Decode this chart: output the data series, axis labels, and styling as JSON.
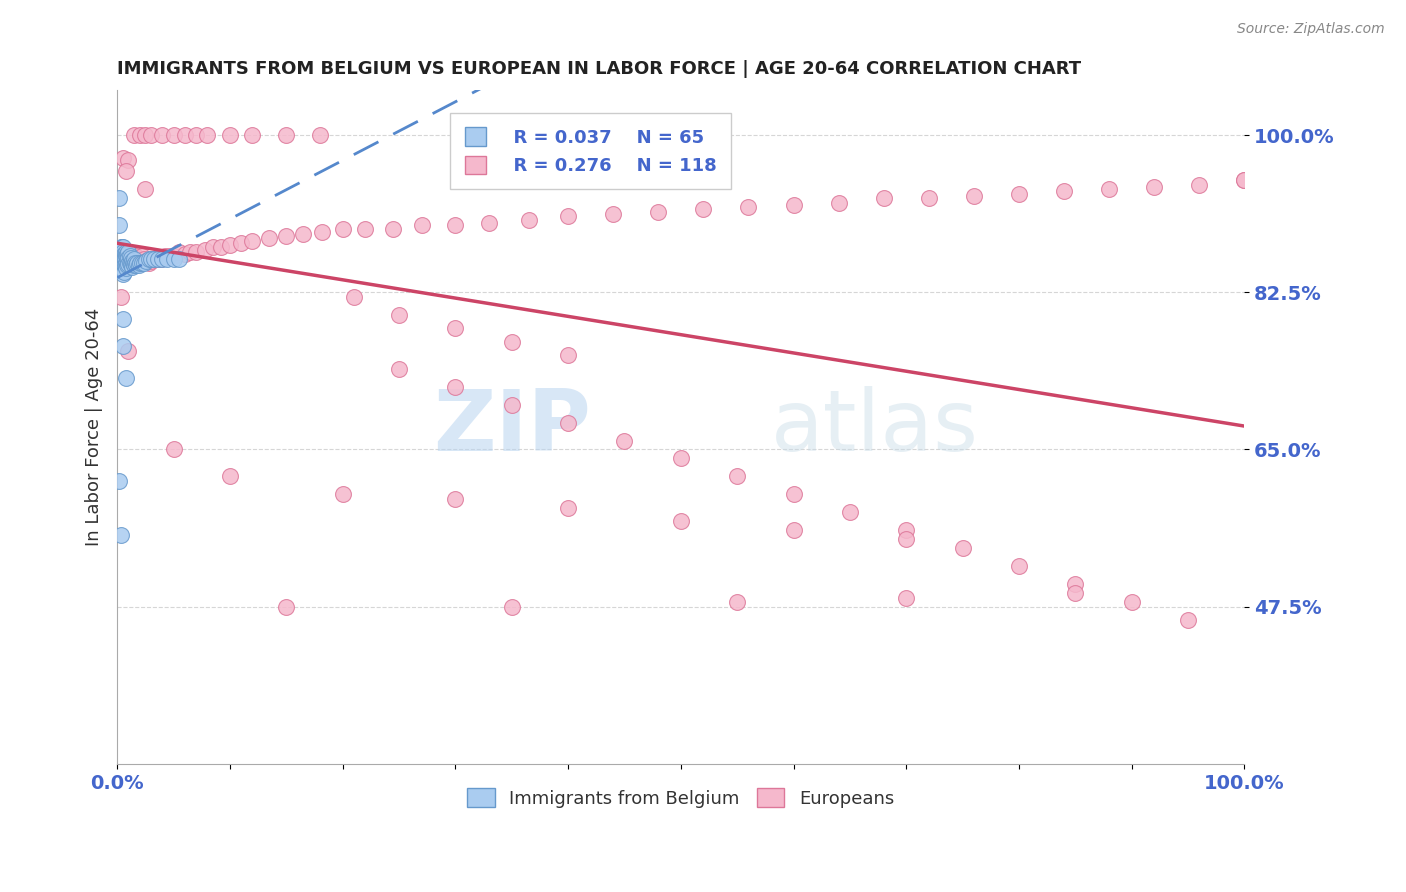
{
  "title": "IMMIGRANTS FROM BELGIUM VS EUROPEAN IN LABOR FORCE | AGE 20-64 CORRELATION CHART",
  "source": "Source: ZipAtlas.com",
  "ylabel": "In Labor Force | Age 20-64",
  "xlim": [
    0.0,
    1.0
  ],
  "ylim": [
    0.3,
    1.05
  ],
  "x_ticks": [
    0.0,
    0.1,
    0.2,
    0.3,
    0.4,
    0.5,
    0.6,
    0.7,
    0.8,
    0.9,
    1.0
  ],
  "x_tick_labels": [
    "0.0%",
    "",
    "",
    "",
    "",
    "",
    "",
    "",
    "",
    "",
    "100.0%"
  ],
  "y_tick_vals": [
    0.475,
    0.65,
    0.825,
    1.0
  ],
  "y_tick_labels": [
    "47.5%",
    "65.0%",
    "82.5%",
    "100.0%"
  ],
  "belgium_color": "#aaccf0",
  "belgium_edge_color": "#6699cc",
  "european_color": "#f5b8cc",
  "european_edge_color": "#dd7799",
  "trendline_belgium_color": "#5588cc",
  "trendline_european_color": "#cc4466",
  "legend_R_belgium": "R = 0.037",
  "legend_N_belgium": "N = 65",
  "legend_R_european": "R = 0.276",
  "legend_N_european": "N = 118",
  "watermark_zip": "ZIP",
  "watermark_atlas": "atlas",
  "grid_color": "#cccccc",
  "title_color": "#222222",
  "axis_label_color": "#333333",
  "tick_label_color": "#4466cc",
  "background_color": "#ffffff",
  "belgium_x": [
    0.002,
    0.002,
    0.003,
    0.003,
    0.003,
    0.003,
    0.003,
    0.004,
    0.004,
    0.004,
    0.004,
    0.004,
    0.005,
    0.005,
    0.005,
    0.005,
    0.005,
    0.005,
    0.006,
    0.006,
    0.006,
    0.006,
    0.007,
    0.007,
    0.007,
    0.008,
    0.008,
    0.008,
    0.008,
    0.009,
    0.009,
    0.009,
    0.01,
    0.01,
    0.01,
    0.011,
    0.011,
    0.012,
    0.012,
    0.013,
    0.013,
    0.014,
    0.015,
    0.015,
    0.016,
    0.017,
    0.018,
    0.019,
    0.02,
    0.022,
    0.024,
    0.026,
    0.028,
    0.03,
    0.033,
    0.036,
    0.04,
    0.044,
    0.05,
    0.055,
    0.002,
    0.003,
    0.005,
    0.005,
    0.008
  ],
  "belgium_y": [
    0.93,
    0.9,
    0.875,
    0.87,
    0.865,
    0.86,
    0.855,
    0.875,
    0.87,
    0.865,
    0.86,
    0.855,
    0.875,
    0.87,
    0.862,
    0.856,
    0.85,
    0.845,
    0.868,
    0.862,
    0.855,
    0.848,
    0.868,
    0.862,
    0.855,
    0.87,
    0.865,
    0.858,
    0.852,
    0.868,
    0.862,
    0.855,
    0.87,
    0.863,
    0.856,
    0.865,
    0.858,
    0.863,
    0.856,
    0.86,
    0.853,
    0.858,
    0.862,
    0.855,
    0.858,
    0.855,
    0.858,
    0.855,
    0.858,
    0.858,
    0.858,
    0.86,
    0.862,
    0.862,
    0.862,
    0.862,
    0.862,
    0.862,
    0.862,
    0.862,
    0.615,
    0.555,
    0.795,
    0.765,
    0.73
  ],
  "european_x": [
    0.002,
    0.003,
    0.004,
    0.005,
    0.006,
    0.007,
    0.008,
    0.009,
    0.01,
    0.011,
    0.012,
    0.013,
    0.015,
    0.016,
    0.017,
    0.018,
    0.02,
    0.022,
    0.024,
    0.026,
    0.028,
    0.03,
    0.033,
    0.036,
    0.039,
    0.042,
    0.046,
    0.05,
    0.055,
    0.06,
    0.065,
    0.07,
    0.078,
    0.085,
    0.092,
    0.1,
    0.11,
    0.12,
    0.135,
    0.15,
    0.165,
    0.182,
    0.2,
    0.22,
    0.245,
    0.27,
    0.3,
    0.33,
    0.365,
    0.4,
    0.44,
    0.48,
    0.52,
    0.56,
    0.6,
    0.64,
    0.68,
    0.72,
    0.76,
    0.8,
    0.84,
    0.88,
    0.92,
    0.96,
    1.0,
    0.005,
    0.01,
    0.015,
    0.02,
    0.025,
    0.03,
    0.04,
    0.05,
    0.06,
    0.07,
    0.08,
    0.1,
    0.12,
    0.15,
    0.18,
    0.21,
    0.25,
    0.3,
    0.35,
    0.4,
    0.25,
    0.3,
    0.35,
    0.4,
    0.45,
    0.5,
    0.55,
    0.6,
    0.65,
    0.7,
    0.75,
    0.8,
    0.85,
    0.9,
    0.95,
    0.003,
    0.01,
    0.05,
    0.1,
    0.2,
    0.3,
    0.4,
    0.5,
    0.6,
    0.7,
    0.15,
    0.35,
    0.55,
    0.7,
    0.85,
    1.0,
    0.008,
    0.025
  ],
  "european_y": [
    0.87,
    0.868,
    0.865,
    0.862,
    0.86,
    0.858,
    0.87,
    0.868,
    0.865,
    0.86,
    0.858,
    0.862,
    0.868,
    0.865,
    0.862,
    0.858,
    0.862,
    0.865,
    0.862,
    0.86,
    0.858,
    0.86,
    0.862,
    0.862,
    0.862,
    0.865,
    0.865,
    0.865,
    0.87,
    0.868,
    0.87,
    0.87,
    0.872,
    0.875,
    0.875,
    0.878,
    0.88,
    0.882,
    0.885,
    0.888,
    0.89,
    0.892,
    0.895,
    0.895,
    0.895,
    0.9,
    0.9,
    0.902,
    0.905,
    0.91,
    0.912,
    0.915,
    0.918,
    0.92,
    0.922,
    0.925,
    0.93,
    0.93,
    0.932,
    0.935,
    0.938,
    0.94,
    0.942,
    0.945,
    0.95,
    0.975,
    0.972,
    1.0,
    1.0,
    1.0,
    1.0,
    1.0,
    1.0,
    1.0,
    1.0,
    1.0,
    1.0,
    1.0,
    1.0,
    1.0,
    0.82,
    0.8,
    0.785,
    0.77,
    0.755,
    0.74,
    0.72,
    0.7,
    0.68,
    0.66,
    0.64,
    0.62,
    0.6,
    0.58,
    0.56,
    0.54,
    0.52,
    0.5,
    0.48,
    0.46,
    0.82,
    0.76,
    0.65,
    0.62,
    0.6,
    0.595,
    0.585,
    0.57,
    0.56,
    0.55,
    0.475,
    0.475,
    0.48,
    0.485,
    0.49,
    0.95,
    0.96,
    0.94
  ]
}
